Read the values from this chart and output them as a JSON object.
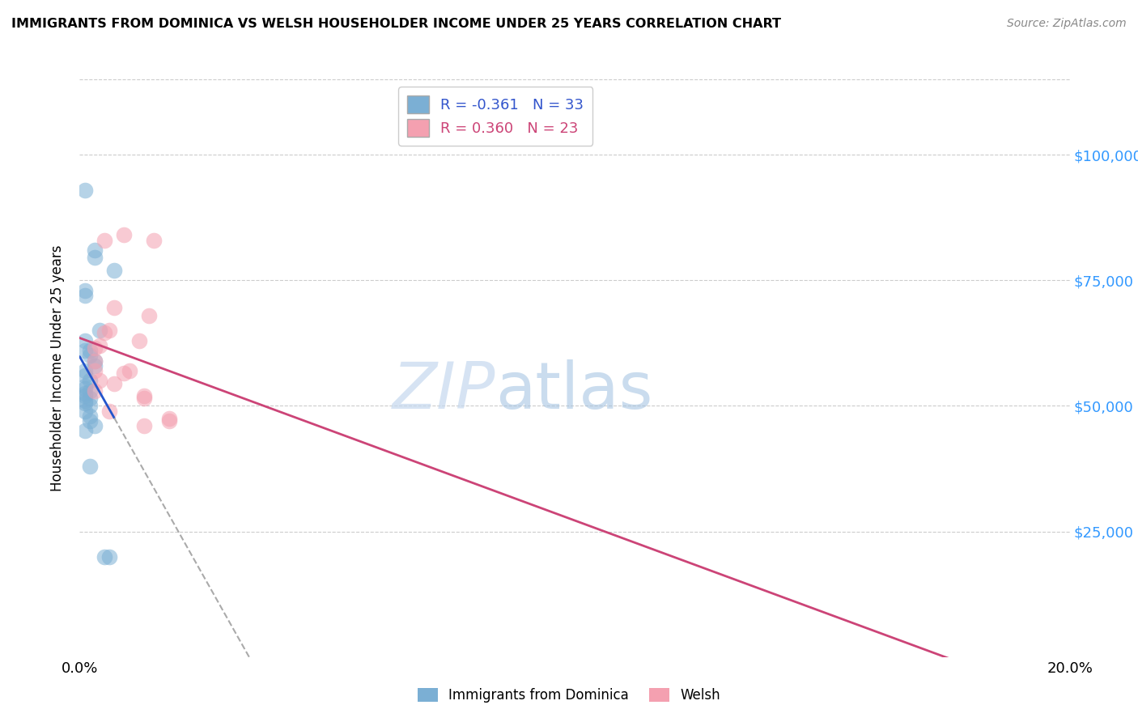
{
  "title": "IMMIGRANTS FROM DOMINICA VS WELSH HOUSEHOLDER INCOME UNDER 25 YEARS CORRELATION CHART",
  "source": "Source: ZipAtlas.com",
  "ylabel": "Householder Income Under 25 years",
  "ytick_labels": [
    "$25,000",
    "$50,000",
    "$75,000",
    "$100,000"
  ],
  "ytick_values": [
    25000,
    50000,
    75000,
    100000
  ],
  "xlim": [
    0.0,
    0.2
  ],
  "ylim": [
    0,
    115000
  ],
  "legend_labels": [
    "Immigrants from Dominica",
    "Welsh"
  ],
  "blue_R": "-0.361",
  "blue_N": "33",
  "pink_R": "0.360",
  "pink_N": "23",
  "blue_color": "#7bafd4",
  "pink_color": "#f4a0b0",
  "blue_line_color": "#2255cc",
  "pink_line_color": "#cc4477",
  "watermark_zip": "ZIP",
  "watermark_atlas": "atlas",
  "blue_dots": [
    [
      0.001,
      93000
    ],
    [
      0.003,
      81000
    ],
    [
      0.003,
      79500
    ],
    [
      0.007,
      77000
    ],
    [
      0.001,
      73000
    ],
    [
      0.001,
      72000
    ],
    [
      0.004,
      65000
    ],
    [
      0.001,
      63000
    ],
    [
      0.001,
      61000
    ],
    [
      0.002,
      61000
    ],
    [
      0.002,
      60000
    ],
    [
      0.003,
      59000
    ],
    [
      0.003,
      58000
    ],
    [
      0.001,
      57000
    ],
    [
      0.001,
      56000
    ],
    [
      0.002,
      55000
    ],
    [
      0.001,
      54000
    ],
    [
      0.001,
      53500
    ],
    [
      0.002,
      53000
    ],
    [
      0.001,
      52500
    ],
    [
      0.001,
      52000
    ],
    [
      0.002,
      51500
    ],
    [
      0.001,
      51000
    ],
    [
      0.001,
      50500
    ],
    [
      0.002,
      50000
    ],
    [
      0.001,
      49000
    ],
    [
      0.002,
      48000
    ],
    [
      0.002,
      47000
    ],
    [
      0.003,
      46000
    ],
    [
      0.001,
      45000
    ],
    [
      0.002,
      38000
    ],
    [
      0.005,
      20000
    ],
    [
      0.006,
      20000
    ]
  ],
  "pink_dots": [
    [
      0.009,
      84000
    ],
    [
      0.015,
      83000
    ],
    [
      0.005,
      83000
    ],
    [
      0.007,
      69500
    ],
    [
      0.014,
      68000
    ],
    [
      0.006,
      65000
    ],
    [
      0.005,
      64500
    ],
    [
      0.012,
      63000
    ],
    [
      0.004,
      62000
    ],
    [
      0.003,
      61500
    ],
    [
      0.003,
      59000
    ],
    [
      0.01,
      57000
    ],
    [
      0.003,
      57000
    ],
    [
      0.009,
      56500
    ],
    [
      0.004,
      55000
    ],
    [
      0.007,
      54500
    ],
    [
      0.003,
      53000
    ],
    [
      0.013,
      52000
    ],
    [
      0.013,
      51500
    ],
    [
      0.006,
      49000
    ],
    [
      0.013,
      46000
    ],
    [
      0.018,
      47000
    ],
    [
      0.018,
      47500
    ]
  ]
}
